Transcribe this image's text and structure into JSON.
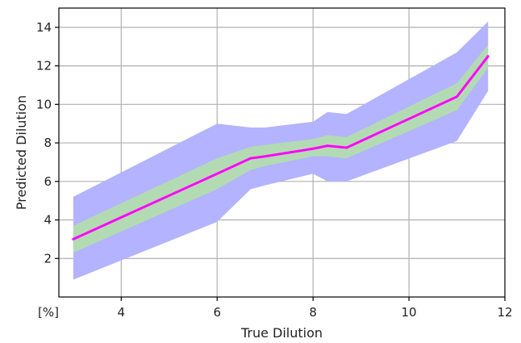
{
  "chart_data": {
    "type": "area",
    "xlabel": "True Dilution",
    "ylabel": "Predicted Dilution",
    "xlim": [
      2.7,
      12
    ],
    "ylim": [
      0,
      15
    ],
    "x_ticks": [
      4,
      6,
      8,
      10,
      12
    ],
    "x_tick_labels": [
      "4",
      "6",
      "8",
      "10",
      "12"
    ],
    "x_extra_label": "[%]",
    "y_ticks": [
      2,
      4,
      6,
      8,
      10,
      12,
      14
    ],
    "y_tick_labels": [
      "2",
      "4",
      "6",
      "8",
      "10",
      "12",
      "14"
    ],
    "grid": true,
    "x": [
      3,
      6,
      6.7,
      7,
      8,
      8.3,
      8.7,
      11,
      11.65
    ],
    "series": [
      {
        "role": "outer-band",
        "color": "#b3b3ff",
        "lower": [
          0.9,
          3.9,
          5.6,
          5.8,
          6.4,
          6.0,
          6.0,
          8.1,
          10.7
        ],
        "upper": [
          5.2,
          9.0,
          8.8,
          8.8,
          9.1,
          9.6,
          9.5,
          12.7,
          14.3
        ]
      },
      {
        "role": "inner-band",
        "color": "#b3dbb3",
        "lower": [
          2.3,
          5.6,
          6.6,
          6.8,
          7.3,
          7.3,
          7.2,
          9.7,
          11.9
        ],
        "upper": [
          3.7,
          7.2,
          7.8,
          7.9,
          8.2,
          8.4,
          8.3,
          11.1,
          13.1
        ]
      },
      {
        "role": "mean-line",
        "color": "#ff00ff",
        "values": [
          3.0,
          6.4,
          7.2,
          7.3,
          7.7,
          7.85,
          7.75,
          10.4,
          12.5
        ]
      }
    ]
  }
}
